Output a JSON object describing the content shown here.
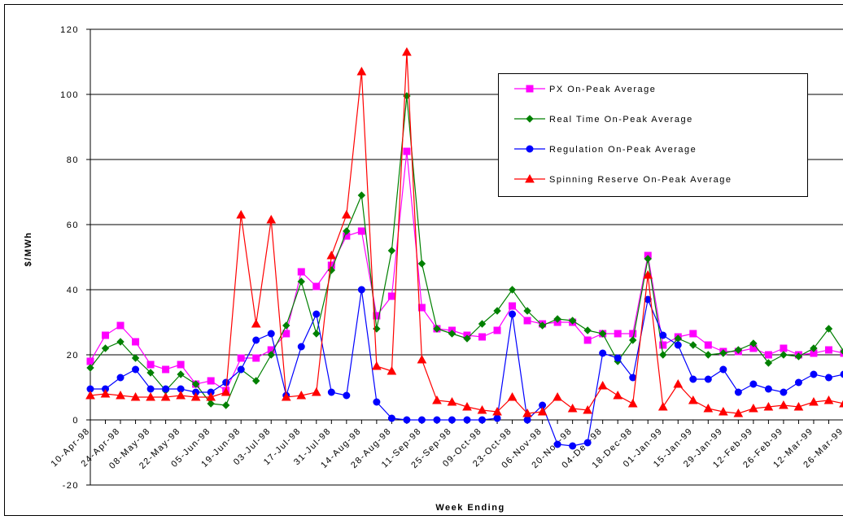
{
  "chart_data": {
    "type": "line",
    "ylabel": "$/MWh",
    "xlabel": "Week Ending",
    "categories": [
      "10-Apr-98",
      null,
      "24-Apr-98",
      null,
      "08-May-98",
      null,
      "22-May-98",
      null,
      "05-Jun-98",
      null,
      "19-Jun-98",
      null,
      "03-Jul-98",
      null,
      "17-Jul-98",
      null,
      "31-Jul-98",
      null,
      "14-Aug-98",
      null,
      "28-Aug-98",
      null,
      "11-Sep-98",
      null,
      "25-Sep-98",
      null,
      "09-Oct-98",
      null,
      "23-Oct-98",
      null,
      "06-Nov-98",
      null,
      "20-Nov-98",
      null,
      "04-Dec-98",
      null,
      "18-Dec-98",
      null,
      "01-Jan-99",
      null,
      "15-Jan-99",
      null,
      "29-Jan-99",
      null,
      "12-Feb-99",
      null,
      "26-Feb-99",
      null,
      "12-Mar-99",
      null,
      "26-Mar-99"
    ],
    "ylim": [
      -20,
      120
    ],
    "yticks": [
      -20,
      0,
      20,
      40,
      60,
      80,
      100,
      120
    ],
    "grid": true,
    "series": [
      {
        "name": "PX On-Peak Average",
        "color": "#ff00ff",
        "marker": "square",
        "values": [
          18,
          26,
          29,
          24,
          17,
          15.5,
          17,
          11,
          12,
          9,
          19,
          19,
          21.5,
          26.5,
          45.5,
          41,
          47.5,
          56.5,
          58,
          32,
          38,
          82.5,
          34.5,
          28,
          27.5,
          26,
          25.5,
          27.5,
          35,
          30.5,
          29.5,
          30,
          30,
          24.5,
          26.5,
          26.5,
          26.5,
          50.5,
          23,
          25.5,
          26.5,
          23,
          21,
          21,
          22,
          20,
          22,
          20,
          20.5,
          21.5,
          20.5
        ]
      },
      {
        "name": "Real Time On-Peak Average",
        "color": "#008000",
        "marker": "diamond",
        "values": [
          16,
          22,
          24,
          19,
          14.5,
          9,
          14,
          11,
          5,
          4.5,
          15.5,
          12,
          20,
          29,
          42.5,
          26.5,
          46,
          58,
          69,
          28,
          52,
          99.5,
          48,
          28,
          26.5,
          25,
          29.5,
          33.5,
          40,
          33.5,
          29,
          31,
          30.5,
          27.5,
          26.5,
          18,
          24.5,
          49.5,
          20,
          25,
          23,
          20,
          20.5,
          21.5,
          23.5,
          17.5,
          20,
          19.5,
          22,
          28,
          21
        ]
      },
      {
        "name": "Regulation On-Peak Average",
        "color": "#0000ff",
        "marker": "circle",
        "values": [
          9.5,
          9.5,
          13,
          15.5,
          9.5,
          9.5,
          9.5,
          8.5,
          8.5,
          11.5,
          15.5,
          24.5,
          26.5,
          7.5,
          22.5,
          32.5,
          8.5,
          7.5,
          40,
          5.5,
          0.5,
          0,
          0,
          0,
          0,
          0,
          0,
          0.5,
          32.5,
          0,
          4.5,
          -7.5,
          -8,
          -7,
          20.5,
          19,
          13,
          37,
          26,
          23,
          12.5,
          12.5,
          15.5,
          8.5,
          11,
          9.5,
          8.5,
          11.5,
          14,
          13,
          14
        ]
      },
      {
        "name": "Spinning Reserve On-Peak Average",
        "color": "#ff0000",
        "marker": "triangle",
        "values": [
          7.5,
          8,
          7.5,
          7,
          7,
          7,
          7.5,
          7,
          7,
          8.5,
          63,
          29.5,
          61.5,
          7,
          7.5,
          8.5,
          50.5,
          63,
          107,
          16.5,
          15,
          113,
          18.5,
          6,
          5.5,
          4,
          3,
          2.5,
          7,
          2,
          2.5,
          7,
          3.5,
          3,
          10.5,
          7.5,
          5,
          44.5,
          4,
          11,
          6,
          3.5,
          2.5,
          2,
          3.5,
          4,
          4.5,
          4,
          5.5,
          6,
          5
        ]
      }
    ]
  }
}
